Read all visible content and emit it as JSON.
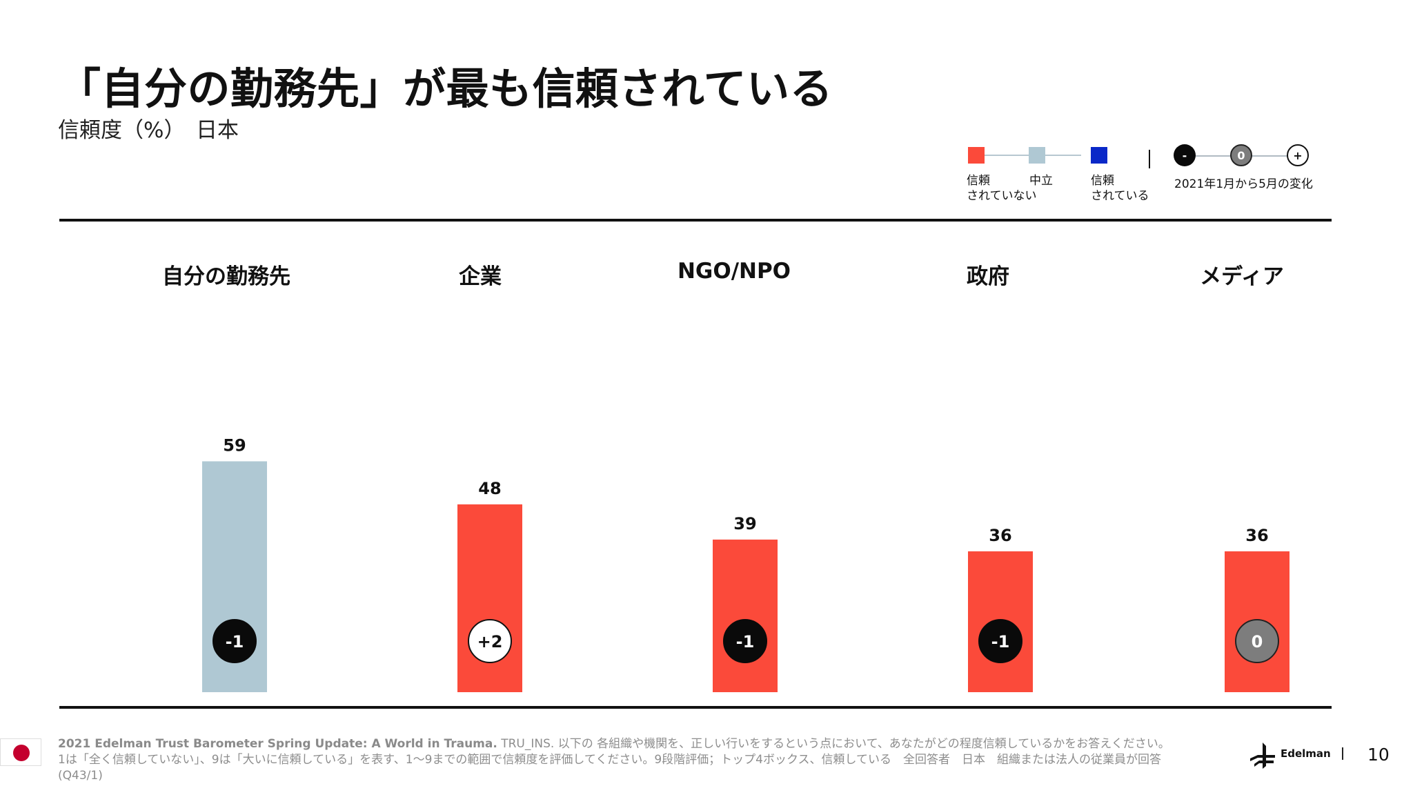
{
  "title": "「自分の勤務先」が最も信頼されている",
  "subtitle": "信頼度（%）　日本",
  "legend": {
    "distrust_label": "信頼\nされていない",
    "neutral_label": "中立",
    "trust_label": "信頼\nされている",
    "change_label": "2021年1月から5月の変化",
    "minus_symbol": "-",
    "zero_symbol": "0",
    "plus_symbol": "+",
    "colors": {
      "distrust": "#fb4a3a",
      "neutral": "#afc8d3",
      "trust": "#0a28c8"
    }
  },
  "chart_data": {
    "type": "bar",
    "categories": [
      "自分の勤務先",
      "企業",
      "NGO/NPO",
      "政府",
      "メディア"
    ],
    "values": [
      59,
      48,
      39,
      36,
      36
    ],
    "changes": [
      "-1",
      "+2",
      "-1",
      "-1",
      "0"
    ],
    "bar_levels": [
      "neutral",
      "distrust",
      "distrust",
      "distrust",
      "distrust"
    ],
    "title": "「自分の勤務先」が最も信頼されている",
    "xlabel": "",
    "ylabel": "",
    "ylim": [
      0,
      100
    ],
    "grid": false,
    "legend_position": "top-right"
  },
  "footer": {
    "source_bold": "2021 Edelman Trust Barometer Spring Update: A World in Trauma.",
    "source_line1_rest": " TRU_INS. 以下の 各組織や機関を、正しい行いをするという点において、あなたがどの程度信頼しているかをお答えください。",
    "source_line2": "1は「全く信頼していない」、9は「大いに信頼している」を表す、1～9までの範囲で信頼度を評価してください。9段階評価；トップ4ボックス、信頼している　全回答者　日本　組織または法人の従業員が回答 (Q43/1)",
    "logo_text": "Edelman",
    "page_number": "10"
  }
}
